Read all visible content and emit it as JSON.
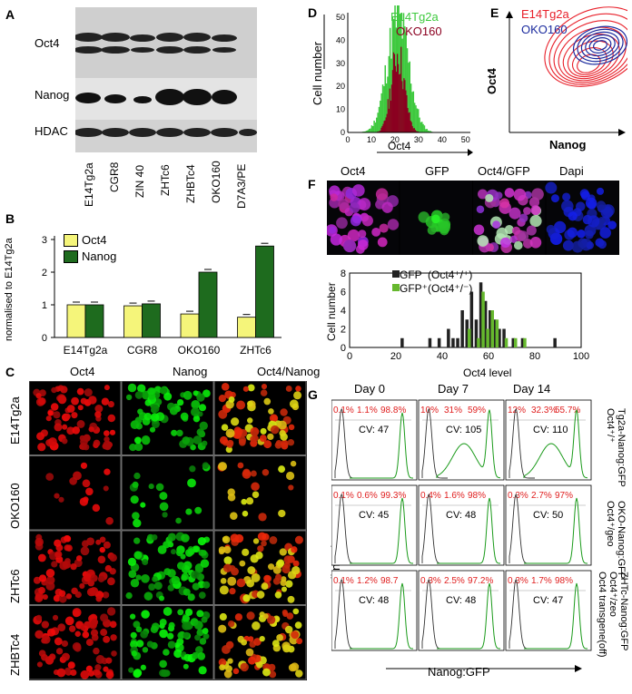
{
  "panels": {
    "A": "A",
    "B": "B",
    "C": "C",
    "D": "D",
    "E": "E",
    "F": "F",
    "G": "G"
  },
  "colors": {
    "e14": "#3ec93e",
    "oko": "#8b0020",
    "yellow": "#f5f57a",
    "green": "#1e6b1e",
    "red": "#e8202a",
    "blue": "#1a2a9e",
    "gfp_minus": "#222222",
    "gfp_plus": "#66b82e"
  },
  "panelA": {
    "bands": [
      "Oct4",
      "Nanog",
      "HDAC"
    ],
    "lanes": [
      "E14Tg2a",
      "CGR8",
      "ZIN 40",
      "ZHTc6",
      "ZHBTc4",
      "OKO160",
      "D7A3/PE"
    ]
  },
  "panelB": {
    "ylabel": "normalised to E14Tg2a",
    "legend": [
      "Oct4",
      "Nanog"
    ],
    "chart_data": {
      "type": "bar",
      "categories": [
        "E14Tg2a",
        "CGR8",
        "OKO160",
        "ZHTc6"
      ],
      "series": [
        {
          "name": "Oct4",
          "values": [
            1.0,
            0.97,
            0.72,
            0.62
          ]
        },
        {
          "name": "Nanog",
          "values": [
            1.0,
            1.03,
            2.0,
            2.8
          ]
        }
      ],
      "yticks": [
        "0",
        "1",
        "2",
        "3"
      ],
      "ylim": [
        0,
        3
      ]
    }
  },
  "panelC": {
    "cols": [
      "Oct4",
      "Nanog",
      "Oct4/Nanog"
    ],
    "rows": [
      "E14Tg2a",
      "OKO160",
      "ZHTc6",
      "ZHBTc4"
    ]
  },
  "panelD": {
    "legend": [
      "E14Tg2a",
      "OKO160"
    ],
    "ylabel": "Cell number",
    "xlabel": "Oct4",
    "xticks": [
      "0",
      "10",
      "20",
      "30",
      "40",
      "50"
    ],
    "yticks": [
      "0",
      "10",
      "20",
      "30",
      "40",
      "50"
    ]
  },
  "panelE": {
    "legend": [
      "E14Tg2a",
      "OKO160"
    ],
    "xlabel": "Nanog",
    "ylabel": "Oct4"
  },
  "panelF": {
    "cols": [
      "Oct4",
      "GFP",
      "Oct4/GFP",
      "Dapi"
    ],
    "legend_minus": "GFP⁻(Oct4⁺/⁺)",
    "legend_plus": "GFP⁺(Oct4⁺/⁻)",
    "ylabel": "Cell number",
    "xlabel": "Oct4 level",
    "xticks": [
      "0",
      "20",
      "40",
      "60",
      "80",
      "100"
    ],
    "yticks": [
      "0",
      "2",
      "4",
      "6",
      "8"
    ],
    "chart_data": {
      "type": "bar",
      "series": [
        {
          "name": "GFP⁻(Oct4⁺/⁺)",
          "x": [
            22,
            34,
            38,
            42,
            44,
            46,
            48,
            50,
            52,
            54,
            56,
            58,
            60,
            62,
            64,
            66,
            70,
            74,
            88
          ],
          "values": [
            1,
            1,
            1,
            2,
            1,
            1,
            4,
            3,
            6,
            3,
            7,
            5,
            4,
            3,
            2,
            2,
            1,
            1,
            1
          ]
        },
        {
          "name": "GFP⁺(Oct4⁺/⁻)",
          "x": [
            50,
            54,
            56,
            58,
            60,
            62,
            66,
            70,
            74
          ],
          "values": [
            2,
            1,
            6,
            2,
            4,
            3,
            1,
            1,
            1
          ]
        }
      ],
      "xlim": [
        0,
        100
      ],
      "ylim": [
        0,
        8
      ]
    }
  },
  "panelG": {
    "days": [
      "Day 0",
      "Day 7",
      "Day 14"
    ],
    "ylabel": "cell number",
    "xlabel": "Nanog:GFP",
    "rows": [
      {
        "label1": "Tg2a-Nanog:GFP",
        "label2": "Oct4⁺/⁺",
        "cells": [
          [
            "0.1%",
            "1.1%",
            "98.8%",
            "CV: 47"
          ],
          [
            "10%",
            "31%",
            "59%",
            "CV: 105"
          ],
          [
            "12%",
            "32.3%",
            "55.7%",
            "CV: 110"
          ]
        ]
      },
      {
        "label1": "OKO-Nanog:GFP",
        "label2": "Oct4⁺/geo",
        "cells": [
          [
            "0.1%",
            "0.6%",
            "99.3%",
            "CV: 45"
          ],
          [
            "0.4%",
            "1.6%",
            "98%",
            "CV: 48"
          ],
          [
            "0.3%",
            "2.7%",
            "97%",
            "CV: 50"
          ]
        ]
      },
      {
        "label1": "ZHTc-Nanog:GFP",
        "label2": "Oct4⁺/zeo",
        "label3": "Oct4 transgene(off)",
        "cells": [
          [
            "0.1%",
            "1.2%",
            "98.7",
            "CV: 48"
          ],
          [
            "0.3%",
            "2.5%",
            "97.2%",
            "CV: 48"
          ],
          [
            "0.3%",
            "1.7%",
            "98%",
            "CV: 47"
          ]
        ]
      }
    ]
  }
}
